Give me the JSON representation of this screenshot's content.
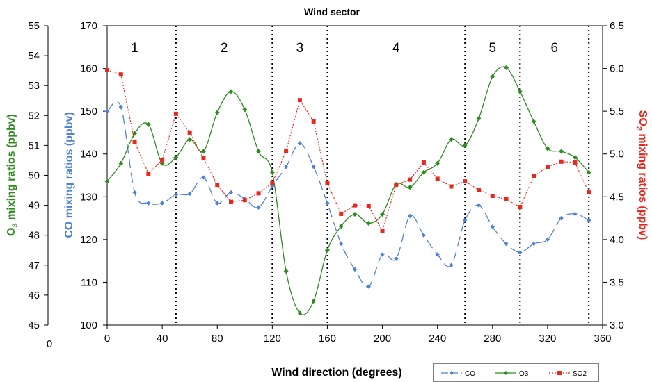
{
  "chart_data": {
    "type": "line",
    "title": "Wind sector",
    "xlabel": "Wind direction (degrees)",
    "x_tick_labels": [
      "0",
      "40",
      "80",
      "120",
      "160",
      "200",
      "240",
      "280",
      "320",
      "360"
    ],
    "xlim": [
      0,
      360
    ],
    "outer_left_tick_label": "0",
    "axes": {
      "o3": {
        "label_prefix": "O",
        "label_sub": "3",
        "label_suffix": " mixing ratios (ppbv)",
        "ylim": [
          45,
          55
        ],
        "tick_labels": [
          "45",
          "46",
          "47",
          "48",
          "49",
          "50",
          "51",
          "52",
          "53",
          "54",
          "55"
        ],
        "color": "#2e8b20"
      },
      "co": {
        "label": "CO mixing ratios (ppbv)",
        "ylim": [
          100,
          170
        ],
        "tick_labels": [
          "100",
          "110",
          "120",
          "130",
          "140",
          "150",
          "160",
          "170"
        ],
        "color": "#4f81d6"
      },
      "so2": {
        "label_prefix": "SO",
        "label_sub": "2",
        "label_suffix": " mixing ratios (ppbv)",
        "ylim": [
          3.0,
          6.5
        ],
        "tick_labels": [
          "3.0",
          "3.5",
          "4.0",
          "4.5",
          "5.0",
          "5.5",
          "6.0",
          "6.5"
        ],
        "color": "#e8281e"
      }
    },
    "sector_boundaries": [
      50,
      120,
      160,
      260,
      300,
      350
    ],
    "sectors": [
      {
        "label": "1",
        "x": 20
      },
      {
        "label": "2",
        "x": 85
      },
      {
        "label": "3",
        "x": 140
      },
      {
        "label": "4",
        "x": 210
      },
      {
        "label": "5",
        "x": 280
      },
      {
        "label": "6",
        "x": 325
      }
    ],
    "series": [
      {
        "name": "CO",
        "axis": "co",
        "x": [
          0,
          10,
          20,
          30,
          40,
          50,
          60,
          70,
          80,
          90,
          100,
          110,
          120,
          130,
          140,
          150,
          160,
          170,
          180,
          190,
          200,
          210,
          220,
          230,
          240,
          250,
          260,
          270,
          280,
          290,
          300,
          310,
          320,
          330,
          340,
          350
        ],
        "values": [
          150,
          151,
          131,
          128.5,
          128.5,
          130.5,
          130.7,
          134.5,
          128.5,
          131,
          129.5,
          127.5,
          132.5,
          137,
          142.5,
          137,
          128.5,
          119,
          113,
          109,
          116.5,
          115.5,
          125.5,
          121,
          116.5,
          114,
          124.5,
          128,
          123,
          119,
          117,
          119,
          120,
          125,
          126,
          124.5
        ]
      },
      {
        "name": "O3",
        "axis": "o3",
        "x": [
          0,
          10,
          20,
          30,
          40,
          50,
          60,
          70,
          80,
          90,
          100,
          110,
          120,
          130,
          140,
          150,
          160,
          170,
          180,
          190,
          200,
          210,
          220,
          230,
          240,
          250,
          260,
          270,
          280,
          290,
          300,
          310,
          320,
          330,
          340,
          350
        ],
        "values": [
          49.8,
          50.4,
          51.4,
          51.7,
          50.4,
          50.6,
          51.2,
          50.8,
          52.1,
          52.8,
          52.2,
          50.8,
          50.1,
          46.8,
          45.4,
          45.8,
          47.5,
          48.3,
          48.7,
          48.4,
          48.7,
          49.7,
          49.6,
          50.1,
          50.4,
          51.2,
          51.0,
          51.9,
          53.3,
          53.6,
          52.8,
          51.8,
          50.9,
          50.8,
          50.6,
          50.1
        ]
      },
      {
        "name": "SO2",
        "axis": "so2",
        "x": [
          0,
          10,
          20,
          30,
          40,
          50,
          60,
          70,
          80,
          90,
          100,
          110,
          120,
          130,
          140,
          150,
          160,
          170,
          180,
          190,
          200,
          210,
          220,
          230,
          240,
          250,
          260,
          270,
          280,
          290,
          300,
          310,
          320,
          330,
          340,
          350
        ],
        "values": [
          5.98,
          5.93,
          5.14,
          4.77,
          4.93,
          5.47,
          5.25,
          4.95,
          4.64,
          4.44,
          4.46,
          4.54,
          4.66,
          5.03,
          5.63,
          5.38,
          4.66,
          4.3,
          4.4,
          4.39,
          4.1,
          4.64,
          4.7,
          4.9,
          4.71,
          4.62,
          4.68,
          4.58,
          4.51,
          4.47,
          4.38,
          4.74,
          4.85,
          4.91,
          4.9,
          4.55
        ]
      }
    ],
    "legend": {
      "position": "bottom-right",
      "items": [
        {
          "name": "CO",
          "color": "#4f81d6",
          "marker": "diamond",
          "dash": "long-dash"
        },
        {
          "name": "O3",
          "color": "#2e8b20",
          "marker": "diamond",
          "dash": "solid"
        },
        {
          "name": "SO2",
          "color": "#e8281e",
          "marker": "square",
          "dash": "dotted"
        }
      ]
    }
  }
}
